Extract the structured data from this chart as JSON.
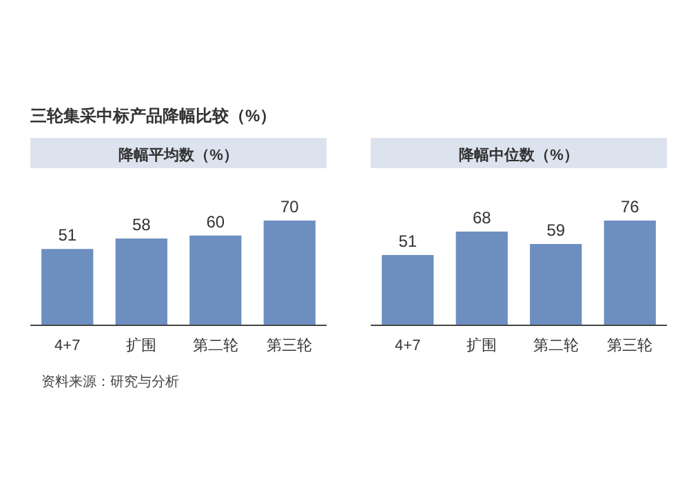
{
  "chart_data": [
    {
      "type": "bar",
      "title": "三轮集采中标产品降幅比较（%）",
      "subtitle": "降幅平均数（%）",
      "categories": [
        "4+7",
        "扩围",
        "第二轮",
        "第三轮"
      ],
      "values": [
        51,
        58,
        60,
        70
      ],
      "color": "#6d8fc0",
      "data_labels": true,
      "annotations": [
        "资料来源：研究与分析"
      ]
    },
    {
      "type": "bar",
      "subtitle": "降幅中位数（%）",
      "categories": [
        "4+7",
        "扩围",
        "第二轮",
        "第三轮"
      ],
      "values": [
        51,
        68,
        59,
        76
      ],
      "color": "#6d8fc0",
      "data_labels": true
    }
  ]
}
